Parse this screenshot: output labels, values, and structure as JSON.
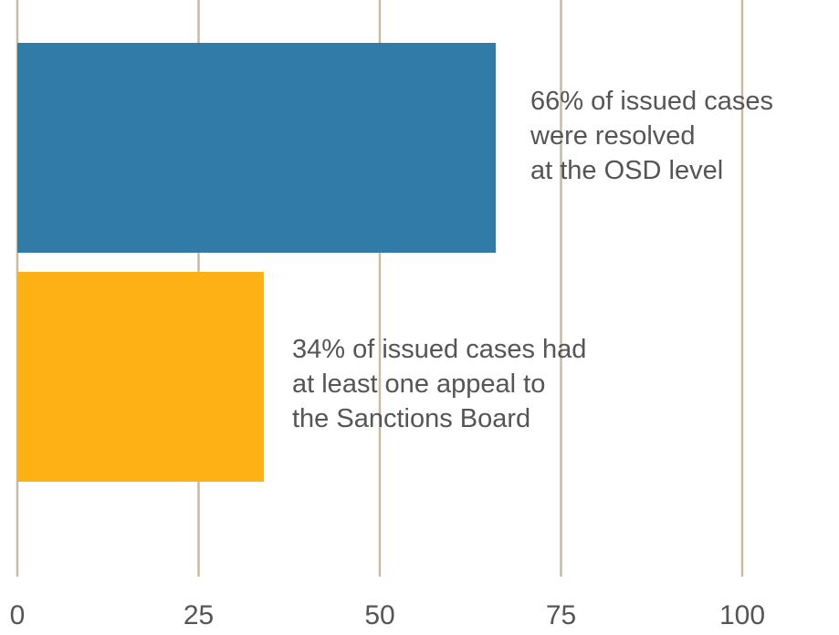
{
  "chart_data": {
    "type": "bar",
    "orientation": "horizontal",
    "categories": [
      "Resolved at OSD level",
      "Appealed to Sanctions Board"
    ],
    "values": [
      66,
      34
    ],
    "unit": "%",
    "title": "",
    "xlabel": "",
    "ylabel": "",
    "xlim": [
      0,
      100
    ],
    "xticks": [
      "0",
      "25",
      "50",
      "75",
      "100"
    ],
    "xtick_values": [
      0,
      25,
      50,
      75,
      100
    ],
    "grid": "vertical",
    "colors": [
      "#317BA8",
      "#FDB114"
    ],
    "gridline_color": "#C8BBA0",
    "annotations": [
      {
        "lines": [
          "66% of issued cases",
          "were resolved",
          "at the OSD level"
        ]
      },
      {
        "lines": [
          "34% of issued cases had",
          "at least one appeal to",
          "the Sanctions Board"
        ]
      }
    ]
  }
}
